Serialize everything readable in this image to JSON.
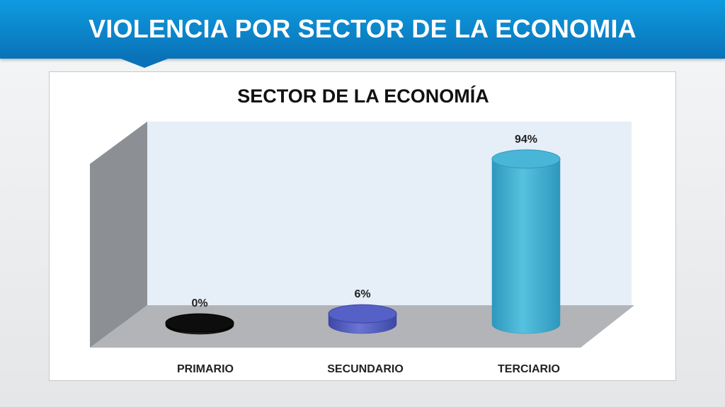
{
  "header": {
    "title": "VIOLENCIA POR SECTOR DE LA ECONOMIA"
  },
  "colors": {
    "banner": "#0a85cc",
    "primario": "#111111",
    "secundario": "#4a55b8",
    "terciario": "#3fb0d4"
  },
  "chart_data": {
    "type": "bar",
    "style": "3d-cylinder",
    "title": "SECTOR DE LA ECONOMÍA",
    "categories": [
      "PRIMARIO",
      "SECUNDARIO",
      "TERCIARIO"
    ],
    "values": [
      0,
      6,
      94
    ],
    "data_labels": [
      "0%",
      "6%",
      "94%"
    ],
    "unit": "%",
    "ylim": [
      0,
      100
    ],
    "grid": false,
    "legend": "none"
  }
}
